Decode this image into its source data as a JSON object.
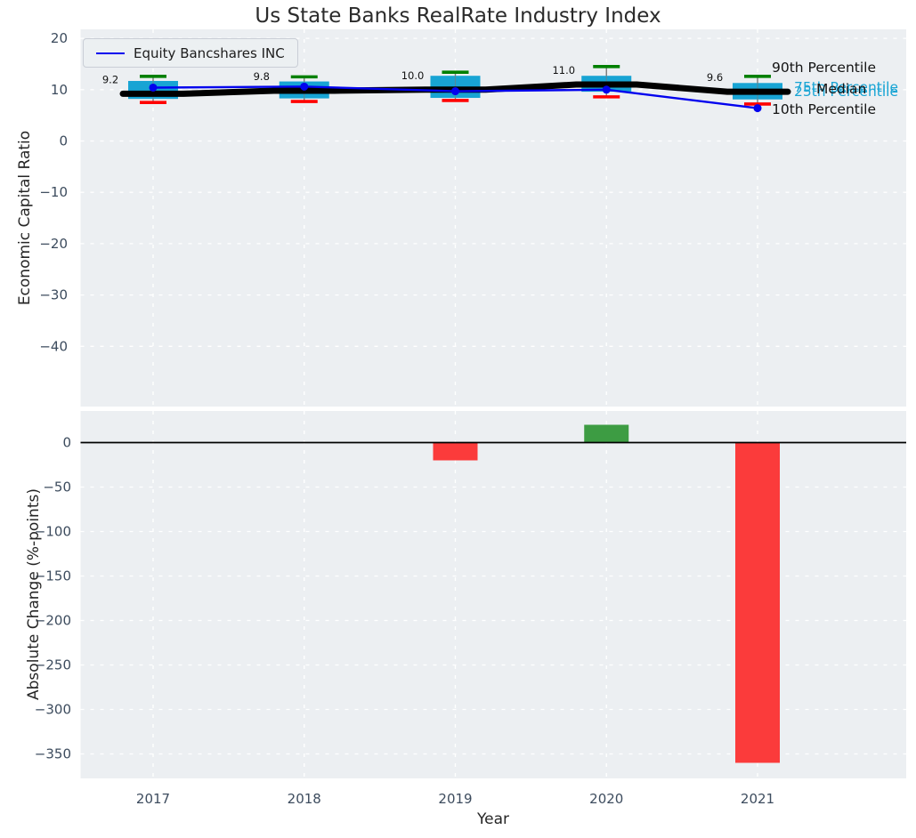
{
  "title": "Us State Banks RealRate Industry Index",
  "legend": {
    "label": "Equity Bancshares INC"
  },
  "colors": {
    "box_fill": "#18a4d4",
    "p90_cap": "#008000",
    "p10_cap": "#ff0000",
    "median_line": "#000000",
    "company_line": "#0202ee",
    "bar_positive": "#3d9c43",
    "bar_negative": "#fb3b3b",
    "plot_bg": "#eceff2",
    "grid": "#ffffff",
    "whisker": "#7a7a7a"
  },
  "chart_data": {
    "type": "boxplot+line+bar",
    "title": "Us State Banks RealRate Industry Index",
    "x": [
      2017,
      2018,
      2019,
      2020,
      2021
    ],
    "xlabel": "Year",
    "legend_position": "upper left",
    "grid": true,
    "top": {
      "ylabel": "Economic Capital Ratio",
      "yticks": [
        20,
        10,
        0,
        -10,
        -20,
        -30,
        -40
      ],
      "ylim": [
        -50.5,
        21.5
      ],
      "boxes": [
        {
          "year": 2017,
          "p10": 7.5,
          "q1": 8.2,
          "median": 9.2,
          "q3": 11.7,
          "p90": 12.6
        },
        {
          "year": 2018,
          "p10": 7.7,
          "q1": 8.3,
          "median": 9.8,
          "q3": 11.6,
          "p90": 12.5
        },
        {
          "year": 2019,
          "p10": 7.9,
          "q1": 8.4,
          "median": 10.0,
          "q3": 12.7,
          "p90": 13.4
        },
        {
          "year": 2020,
          "p10": 8.6,
          "q1": 9.6,
          "median": 11.0,
          "q3": 12.7,
          "p90": 14.5
        },
        {
          "year": 2021,
          "p10": 7.2,
          "q1": 8.1,
          "median": 9.6,
          "q3": 11.3,
          "p90": 12.6
        }
      ],
      "median_labels": [
        "9.2",
        "9.8",
        "10.0",
        "11.0",
        "9.6"
      ],
      "company_series": {
        "name": "Equity Bancshares INC",
        "values": [
          10.4,
          10.6,
          9.7,
          10.0,
          6.4
        ]
      },
      "percentile_labels": {
        "p90": "90th Percentile",
        "p75": "75th Percentile",
        "median": "Median",
        "p25": "25th Percentile",
        "p10": "10th Percentile"
      }
    },
    "bottom": {
      "ylabel": "Absolute Change (%-points)",
      "yticks": [
        0,
        -50,
        -100,
        -150,
        -200,
        -250,
        -300,
        -350
      ],
      "ylim": [
        -377,
        36
      ],
      "bars": [
        0,
        0,
        -20,
        20,
        -360
      ]
    }
  }
}
